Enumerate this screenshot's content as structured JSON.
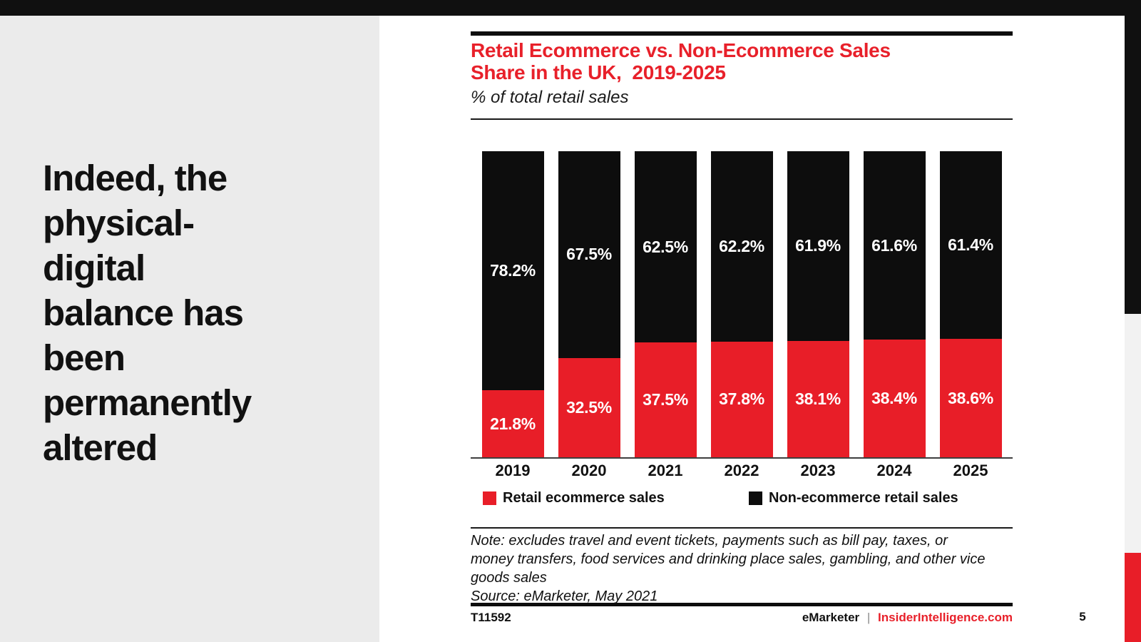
{
  "left_panel": {
    "headline_lines": [
      "Indeed, the",
      "physical-",
      "digital",
      "balance has",
      "been",
      "permanently",
      "altered"
    ]
  },
  "chart": {
    "title_lines": [
      "Retail Ecommerce vs. Non-Ecommerce Sales",
      "Share in the UK,  2019-2025"
    ],
    "subtitle": "% of total retail sales",
    "legend": [
      "Retail ecommerce sales",
      "Non-ecommerce retail sales"
    ],
    "note_lines": [
      "Note: excludes travel and event tickets, payments such as bill pay, taxes, or",
      "money transfers, food services and drinking place sales, gambling, and other vice",
      "goods sales",
      "Source: eMarketer, May 2021"
    ]
  },
  "chart_data": {
    "type": "bar",
    "stacked": true,
    "title": "Retail Ecommerce vs. Non-Ecommerce Sales Share in the UK, 2019-2025",
    "subtitle": "% of total retail sales",
    "categories": [
      "2019",
      "2020",
      "2021",
      "2022",
      "2023",
      "2024",
      "2025"
    ],
    "series": [
      {
        "name": "Retail ecommerce sales",
        "color": "#e81e28",
        "values": [
          21.8,
          32.5,
          37.5,
          37.8,
          38.1,
          38.4,
          38.6
        ]
      },
      {
        "name": "Non-ecommerce retail sales",
        "color": "#0d0d0d",
        "values": [
          78.2,
          67.5,
          62.5,
          62.2,
          61.9,
          61.6,
          61.4
        ]
      }
    ],
    "value_suffix": "%",
    "ylim": [
      0,
      100
    ],
    "grid": false,
    "legend_position": "bottom"
  },
  "footer": {
    "chart_id": "T11592",
    "brand_left": "eMarketer",
    "brand_separator": "|",
    "brand_right": "InsiderIntelligence.com",
    "page_number": "5"
  },
  "colors": {
    "accent_red": "#e81e28",
    "bar_black": "#0d0d0d",
    "top_bar_black": "#101010",
    "left_panel_gray": "#ebebeb",
    "strip_gray": "#f2f2f2"
  }
}
